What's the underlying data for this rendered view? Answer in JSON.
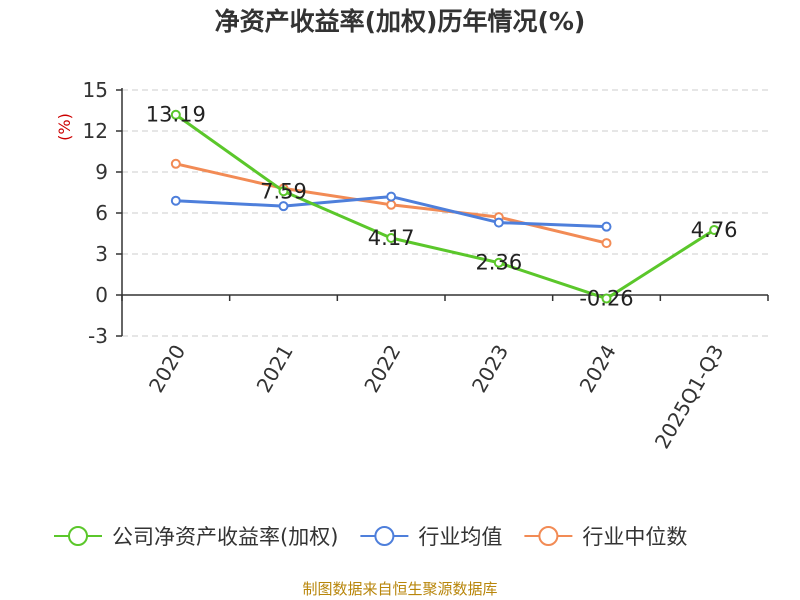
{
  "chart_data": {
    "type": "line",
    "title": "净资产收益率(加权)历年情况(%)",
    "ylabel": "(%)",
    "categories": [
      "2020",
      "2021",
      "2022",
      "2023",
      "2024",
      "2025Q1-Q3"
    ],
    "yticks": [
      -3,
      0,
      3,
      6,
      9,
      12,
      15
    ],
    "ylim": [
      -3,
      15
    ],
    "grid": true,
    "legend_position": "bottom",
    "series": [
      {
        "name": "公司净资产收益率(加权)",
        "color": "#5bc72b",
        "values": [
          13.19,
          7.59,
          4.17,
          2.36,
          -0.26,
          4.76
        ],
        "labels": [
          "13.19",
          "7.59",
          "4.17",
          "2.36",
          "-0.26",
          "4.76"
        ],
        "show_labels": true
      },
      {
        "name": "行业均值",
        "color": "#4e7fdb",
        "values": [
          6.9,
          6.5,
          7.2,
          5.3,
          5.0,
          null
        ],
        "show_labels": false
      },
      {
        "name": "行业中位数",
        "color": "#f28b55",
        "values": [
          9.6,
          7.8,
          6.6,
          5.7,
          3.8,
          null
        ],
        "show_labels": false
      }
    ]
  },
  "source": "制图数据来自恒生聚源数据库"
}
